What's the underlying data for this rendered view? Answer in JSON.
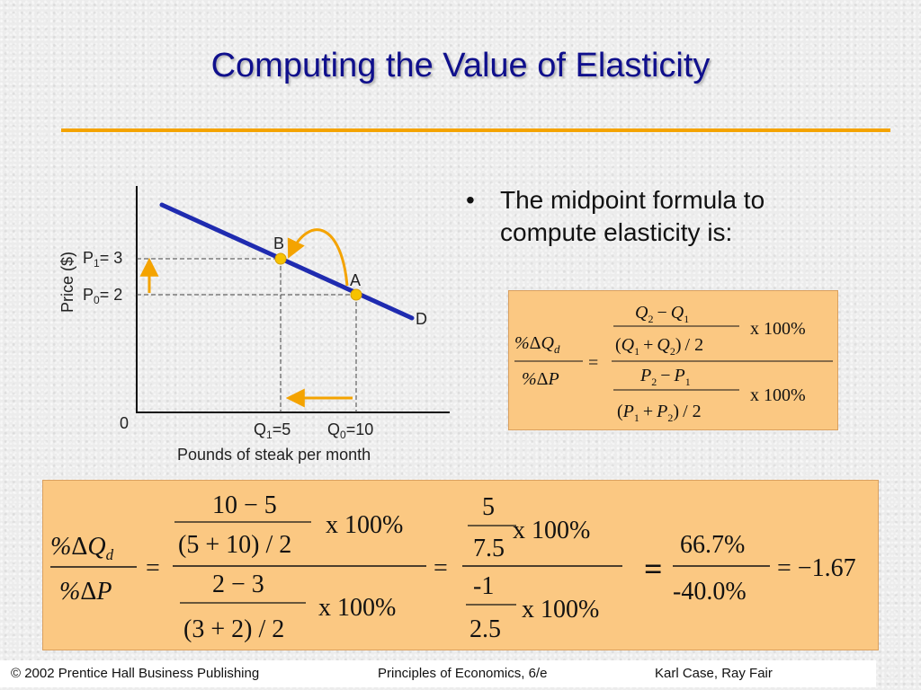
{
  "slide": {
    "title": "Computing the Value of Elasticity",
    "bullet": "The midpoint formula to compute elasticity is:",
    "colors": {
      "title": "#0f0f8c",
      "accent_rule": "#f4a300",
      "formula_box": "#fbc882",
      "demand_line": "#1f2bb0",
      "point": "#f6c200",
      "arrow": "#f4a300"
    }
  },
  "graph": {
    "y_axis_label": "Price ($)",
    "x_axis_label": "Pounds of steak per month",
    "origin_label": "0",
    "demand_label": "D",
    "point_b_label": "B",
    "point_a_label": "A",
    "p1": {
      "sym": "P",
      "sub": "1",
      "val": "= 3"
    },
    "p0": {
      "sym": "P",
      "sub": "0",
      "val": "= 2"
    },
    "q1": {
      "sym": "Q",
      "sub": "1",
      "val": "=5"
    },
    "q0": {
      "sym": "Q",
      "sub": "0",
      "val": "=10"
    }
  },
  "formula": {
    "q2": "Q",
    "s2": "2",
    "minus": "−",
    "q1": "Q",
    "s1": "1",
    "lp": "(",
    "plus": "+",
    "rp": ")",
    "half": "/ 2",
    "x100": "x 100%",
    "eq": "=",
    "pct": "%",
    "delta": "Δ",
    "qd": "Q",
    "d": "d",
    "p": "P",
    "p2": "P",
    "p1": "P"
  },
  "calc": {
    "n1": "10 − 5",
    "d1": "(5 + 10) / 2",
    "n2": "2 − 3",
    "d2": "(3 + 2) / 2",
    "x100": "x 100%",
    "n3": "5",
    "d3": "7.5",
    "n4": "-1",
    "d4": "2.5",
    "n5": "66.7%",
    "d5": "-40.0%",
    "eq": "=",
    "result": "= −1.67"
  },
  "footer": {
    "copyright": "© 2002 Prentice Hall Business Publishing",
    "book": "Principles of Economics, 6/e",
    "authors": "Karl Case, Ray Fair"
  }
}
